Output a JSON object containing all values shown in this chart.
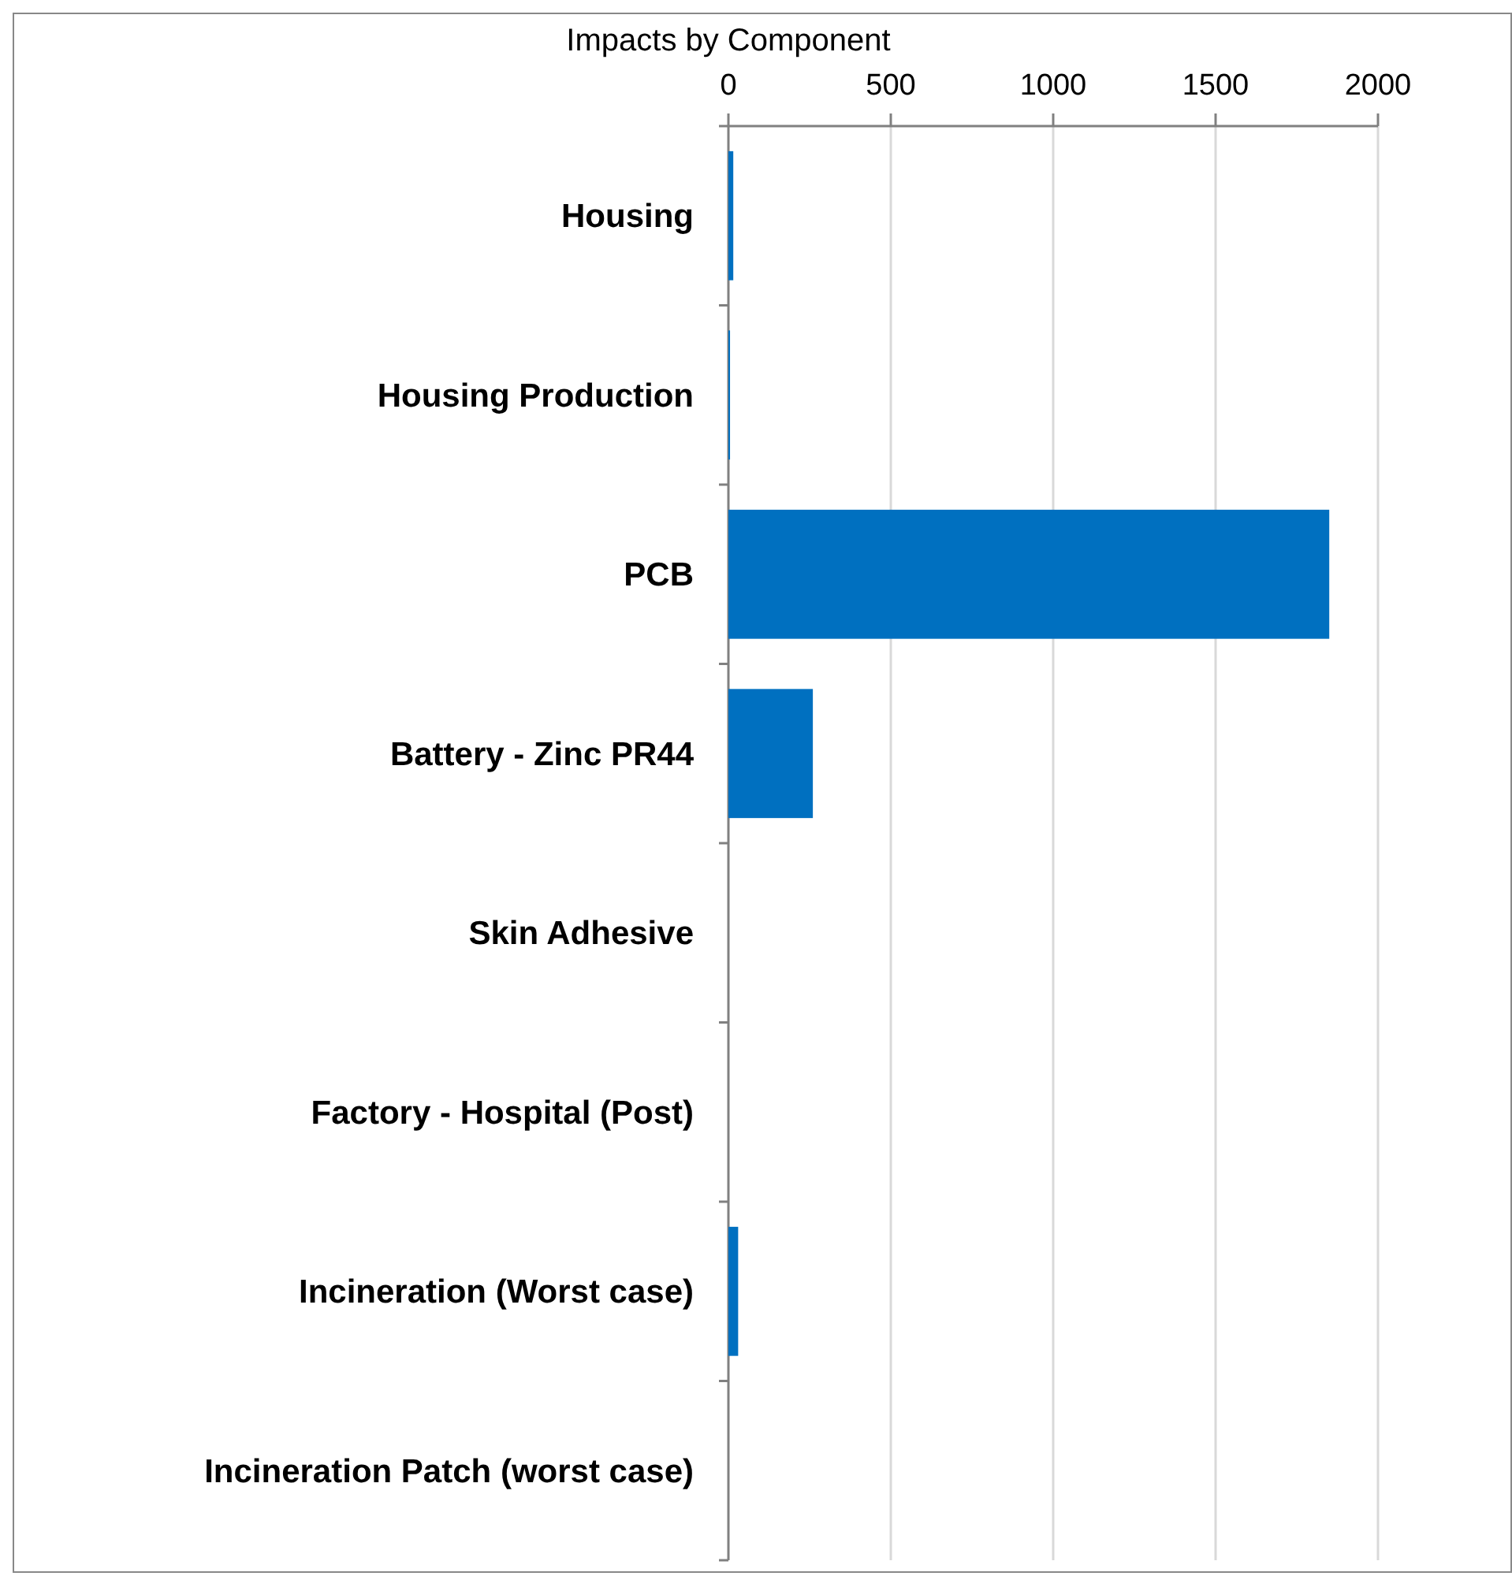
{
  "chart_data": {
    "type": "bar",
    "orientation": "horizontal",
    "title": "Impacts by Component",
    "categories": [
      "Housing",
      "Housing Production",
      "PCB",
      "Battery - Zinc PR44",
      "Skin Adhesive",
      "Factory - Hospital (Post)",
      "Incineration (Worst case)",
      "Incineration Patch (worst case)"
    ],
    "values": [
      15,
      5,
      1850,
      260,
      0,
      0,
      30,
      0
    ],
    "color": "#0070c0",
    "xlim": [
      0,
      2000
    ],
    "xticks": [
      0,
      500,
      1000,
      1500,
      2000
    ],
    "grid": "x"
  }
}
